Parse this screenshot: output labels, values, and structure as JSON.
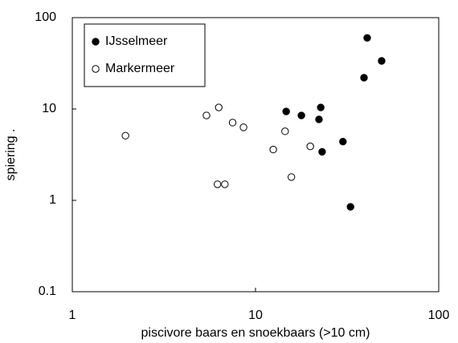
{
  "chart_data": {
    "type": "scatter",
    "xlabel": "piscivore baars en snoekbaars (>10 cm)",
    "ylabel": "spiering  .",
    "log_x": true,
    "log_y": true,
    "xlim": [
      1,
      100
    ],
    "ylim": [
      0.1,
      100
    ],
    "xticks": [
      1,
      10,
      100
    ],
    "yticks": [
      0.1,
      1,
      10,
      100
    ],
    "legend": "top-left",
    "series": [
      {
        "name": "IJsselmeer",
        "color": "#000000",
        "marker": "filled",
        "x": [
          40.7,
          48.8,
          39.1,
          14.7,
          17.8,
          22.7,
          22.2,
          23.1,
          30,
          33
        ],
        "y": [
          60,
          33.6,
          22,
          9.4,
          8.5,
          10.4,
          7.7,
          3.4,
          4.4,
          0.85
        ]
      },
      {
        "name": "Markermeer",
        "color": "#000000",
        "marker": "open",
        "x": [
          1.95,
          5.4,
          6.3,
          7.5,
          8.6,
          6.2,
          6.8,
          12.5,
          14.5,
          15.7,
          19.9
        ],
        "y": [
          5.1,
          8.5,
          10.4,
          7.1,
          6.3,
          1.5,
          1.5,
          3.6,
          5.7,
          1.8,
          3.9
        ]
      }
    ]
  }
}
